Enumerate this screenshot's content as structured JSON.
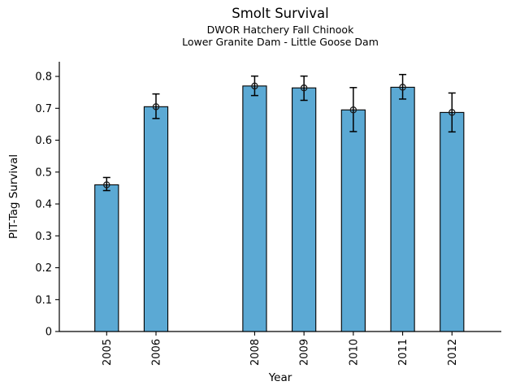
{
  "chart_data": {
    "type": "bar",
    "title": "Smolt Survival",
    "subtitle1": "DWOR Hatchery Fall Chinook",
    "subtitle2": "Lower Granite Dam - Little Goose Dam",
    "xlabel": "Year",
    "ylabel": "PIT-Tag Survival",
    "categories": [
      "2005",
      "2006",
      "2008",
      "2009",
      "2010",
      "2011",
      "2012"
    ],
    "x": [
      2005,
      2006,
      2008,
      2009,
      2010,
      2011,
      2012
    ],
    "values": [
      0.46,
      0.705,
      0.77,
      0.764,
      0.695,
      0.766,
      0.687
    ],
    "error_low": [
      0.442,
      0.668,
      0.74,
      0.725,
      0.627,
      0.729,
      0.626
    ],
    "error_high": [
      0.483,
      0.745,
      0.801,
      0.801,
      0.765,
      0.806,
      0.748
    ],
    "note_missing_year": "2007",
    "bar_width_years": 0.48,
    "xlim": [
      2004.04,
      2013.0
    ],
    "ylim": [
      0,
      0.846
    ],
    "yticks": [
      0,
      0.1,
      0.2,
      0.3,
      0.4,
      0.5,
      0.6,
      0.7,
      0.8
    ],
    "ytick_labels": [
      "0",
      "0.1",
      "0.2",
      "0.3",
      "0.4",
      "0.5",
      "0.6",
      "0.7",
      "0.8"
    ],
    "x_tick_rotation_deg": 90,
    "grid": false,
    "legend": null,
    "bar_fill": "#5BA9D4",
    "bar_edge": "#000000",
    "error_color": "#000000",
    "marker": "open-circle"
  }
}
